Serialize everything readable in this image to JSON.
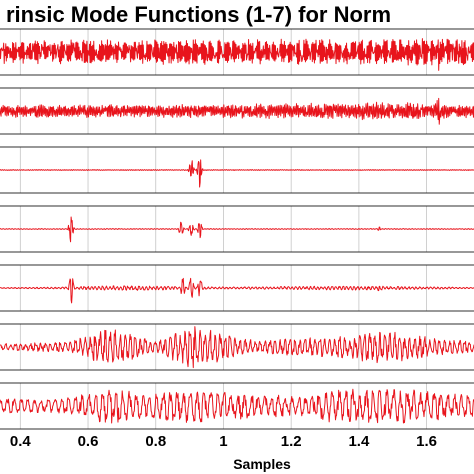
{
  "chart_data": {
    "type": "line",
    "title": "rinsic Mode Functions (1-7) for Norm",
    "xlabel": "Samples",
    "ylabel": "",
    "xlim": [
      0.34,
      1.74
    ],
    "x_ticks": [
      0.4,
      0.6,
      0.8,
      1,
      1.2,
      1.4,
      1.6
    ],
    "x_tick_labels": [
      "0.4",
      "0.6",
      "0.8",
      "1",
      "1.2",
      "1.4",
      "1.6"
    ],
    "grid": true,
    "line_color": "#e8141c",
    "series": [
      {
        "index": 1,
        "envelope": [
          {
            "x": 0.34,
            "amp": 0.55
          },
          {
            "x": 0.8,
            "amp": 0.6
          },
          {
            "x": 1.3,
            "amp": 0.62
          },
          {
            "x": 1.6,
            "amp": 0.65
          },
          {
            "x": 1.74,
            "amp": 0.6
          }
        ],
        "spikes": [
          {
            "x": 1.635,
            "amp": 1.0
          }
        ],
        "oscillation_cycles": 420
      },
      {
        "index": 2,
        "envelope": [
          {
            "x": 0.34,
            "amp": 0.3
          },
          {
            "x": 1.0,
            "amp": 0.32
          },
          {
            "x": 1.48,
            "amp": 0.42
          },
          {
            "x": 1.74,
            "amp": 0.3
          }
        ],
        "spikes": [
          {
            "x": 1.48,
            "amp": 0.45
          },
          {
            "x": 1.635,
            "amp": 1.0
          }
        ],
        "oscillation_cycles": 320
      },
      {
        "index": 3,
        "envelope": [
          {
            "x": 0.34,
            "amp": 0.02
          },
          {
            "x": 1.74,
            "amp": 0.02
          }
        ],
        "spikes": [
          {
            "x": 0.905,
            "amp": 0.55
          },
          {
            "x": 0.93,
            "amp": 1.0
          }
        ],
        "oscillation_cycles": 220
      },
      {
        "index": 4,
        "envelope": [
          {
            "x": 0.34,
            "amp": 0.02
          },
          {
            "x": 1.74,
            "amp": 0.02
          }
        ],
        "spikes": [
          {
            "x": 0.55,
            "amp": 1.0
          },
          {
            "x": 0.875,
            "amp": 0.45
          },
          {
            "x": 0.905,
            "amp": 0.55
          },
          {
            "x": 0.93,
            "amp": 0.45
          },
          {
            "x": 1.46,
            "amp": 0.12
          }
        ],
        "oscillation_cycles": 160
      },
      {
        "index": 5,
        "envelope": [
          {
            "x": 0.34,
            "amp": 0.02
          },
          {
            "x": 0.5,
            "amp": 0.04
          },
          {
            "x": 0.7,
            "amp": 0.12
          },
          {
            "x": 1.0,
            "amp": 0.05
          },
          {
            "x": 1.4,
            "amp": 0.1
          },
          {
            "x": 1.74,
            "amp": 0.03
          }
        ],
        "spikes": [
          {
            "x": 0.55,
            "amp": 1.0
          },
          {
            "x": 0.88,
            "amp": 0.55
          },
          {
            "x": 0.905,
            "amp": 0.7
          },
          {
            "x": 0.93,
            "amp": 0.7
          },
          {
            "x": 1.46,
            "amp": 0.2
          }
        ],
        "oscillation_cycles": 130
      },
      {
        "index": 6,
        "envelope": [
          {
            "x": 0.34,
            "amp": 0.15
          },
          {
            "x": 0.55,
            "amp": 0.25
          },
          {
            "x": 0.66,
            "amp": 0.95
          },
          {
            "x": 0.8,
            "amp": 0.25
          },
          {
            "x": 0.905,
            "amp": 1.0
          },
          {
            "x": 1.1,
            "amp": 0.3
          },
          {
            "x": 1.36,
            "amp": 0.55
          },
          {
            "x": 1.47,
            "amp": 0.8
          },
          {
            "x": 1.74,
            "amp": 0.25
          }
        ],
        "spikes": [],
        "oscillation_cycles": 95
      },
      {
        "index": 7,
        "envelope": [
          {
            "x": 0.34,
            "amp": 0.35
          },
          {
            "x": 0.5,
            "amp": 0.3
          },
          {
            "x": 0.6,
            "amp": 0.6
          },
          {
            "x": 0.68,
            "amp": 0.95
          },
          {
            "x": 0.76,
            "amp": 0.55
          },
          {
            "x": 0.9,
            "amp": 0.85
          },
          {
            "x": 1.0,
            "amp": 0.65
          },
          {
            "x": 1.25,
            "amp": 0.45
          },
          {
            "x": 1.32,
            "amp": 0.8
          },
          {
            "x": 1.5,
            "amp": 0.85
          },
          {
            "x": 1.74,
            "amp": 0.5
          }
        ],
        "spikes": [],
        "oscillation_cycles": 70
      }
    ]
  }
}
